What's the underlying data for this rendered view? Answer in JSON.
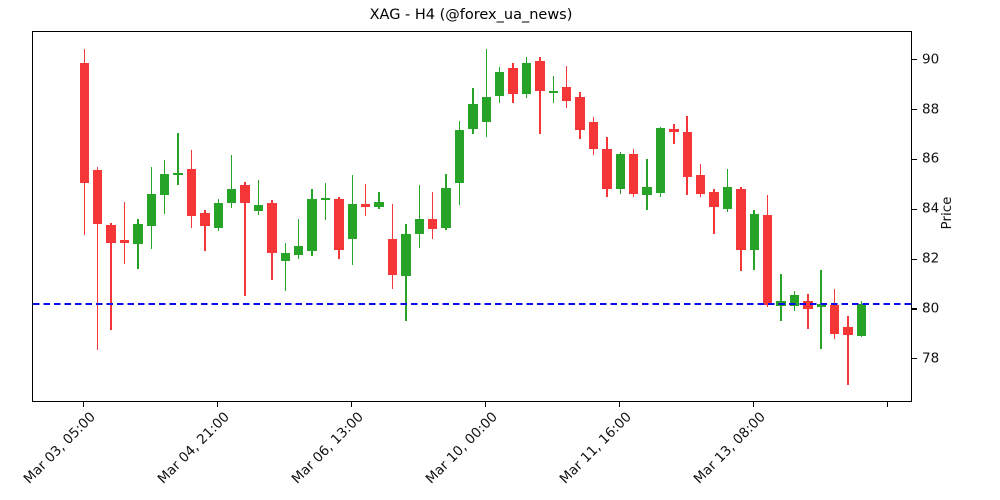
{
  "title": "XAG - H4 (@forex_ua_news)",
  "y_axis": {
    "label": "Price",
    "ticks": [
      78,
      80,
      82,
      84,
      86,
      88,
      90
    ]
  },
  "x_axis": {
    "tick_labels": [
      "Mar 03, 05:00",
      "Mar 04, 21:00",
      "Mar 06, 13:00",
      "Mar 10, 00:00",
      "Mar 11, 16:00",
      "Mar 13, 08:00",
      ""
    ]
  },
  "hline": {
    "value": 80.25,
    "color": "#0b0bee",
    "style": "dashed"
  },
  "chart_data": {
    "type": "candlestick",
    "symbol": "XAG",
    "timeframe": "H4",
    "source": "@forex_ua_news",
    "up_color": "#27a327",
    "down_color": "#f43636",
    "grid": false,
    "legend_position": "none",
    "y_range": [
      76.35,
      91.15
    ],
    "x_range": [
      -3.83,
      61.7
    ],
    "x_tick_indices": [
      0,
      10,
      20,
      30,
      40,
      50,
      60
    ],
    "columns": [
      "open",
      "high",
      "low",
      "close"
    ],
    "candles": [
      [
        89.9,
        90.45,
        83.0,
        85.1
      ],
      [
        85.6,
        85.75,
        78.4,
        83.45
      ],
      [
        83.4,
        83.5,
        79.2,
        82.7
      ],
      [
        82.8,
        84.35,
        81.85,
        82.7
      ],
      [
        82.65,
        83.65,
        81.65,
        83.45
      ],
      [
        83.35,
        85.75,
        82.45,
        84.65
      ],
      [
        84.6,
        86.0,
        83.85,
        85.45
      ],
      [
        85.4,
        87.1,
        85.0,
        85.5
      ],
      [
        85.65,
        86.4,
        83.3,
        83.75
      ],
      [
        83.9,
        84.0,
        82.35,
        83.35
      ],
      [
        83.3,
        84.45,
        83.15,
        84.3
      ],
      [
        84.3,
        86.2,
        84.1,
        84.85
      ],
      [
        85.0,
        85.15,
        80.55,
        84.3
      ],
      [
        83.95,
        85.2,
        83.8,
        84.2
      ],
      [
        84.3,
        84.4,
        81.2,
        82.3
      ],
      [
        81.95,
        82.7,
        80.75,
        82.3
      ],
      [
        82.2,
        83.65,
        82.05,
        82.55
      ],
      [
        82.35,
        84.85,
        82.15,
        84.45
      ],
      [
        84.4,
        85.1,
        83.6,
        84.5
      ],
      [
        84.45,
        84.55,
        82.05,
        82.4
      ],
      [
        82.85,
        85.4,
        81.8,
        84.25
      ],
      [
        84.25,
        85.05,
        83.75,
        84.15
      ],
      [
        84.15,
        84.75,
        84.05,
        84.35
      ],
      [
        82.85,
        84.25,
        80.85,
        81.4
      ],
      [
        81.35,
        83.45,
        79.55,
        83.05
      ],
      [
        83.05,
        85.0,
        82.5,
        83.65
      ],
      [
        83.65,
        84.75,
        82.85,
        83.25
      ],
      [
        83.3,
        85.45,
        83.2,
        84.9
      ],
      [
        85.1,
        87.6,
        84.2,
        87.2
      ],
      [
        87.25,
        88.9,
        87.05,
        88.25
      ],
      [
        87.55,
        90.45,
        86.95,
        88.55
      ],
      [
        88.6,
        89.75,
        88.3,
        89.55
      ],
      [
        89.7,
        89.9,
        88.3,
        88.65
      ],
      [
        88.65,
        90.15,
        88.5,
        89.9
      ],
      [
        90.0,
        90.15,
        87.05,
        88.8
      ],
      [
        88.7,
        89.4,
        88.3,
        88.8
      ],
      [
        88.95,
        89.8,
        88.1,
        88.4
      ],
      [
        88.55,
        88.75,
        86.85,
        87.2
      ],
      [
        87.55,
        87.75,
        86.2,
        86.45
      ],
      [
        86.45,
        86.95,
        84.55,
        84.85
      ],
      [
        84.85,
        86.35,
        84.65,
        86.25
      ],
      [
        86.25,
        86.45,
        84.55,
        84.65
      ],
      [
        84.6,
        86.05,
        84.0,
        84.95
      ],
      [
        84.7,
        87.35,
        84.55,
        87.3
      ],
      [
        87.25,
        87.45,
        86.65,
        87.15
      ],
      [
        87.15,
        87.8,
        84.6,
        85.35
      ],
      [
        85.4,
        85.85,
        84.55,
        84.65
      ],
      [
        84.75,
        84.85,
        83.05,
        84.15
      ],
      [
        84.05,
        85.65,
        83.95,
        84.95
      ],
      [
        84.85,
        84.95,
        81.55,
        82.4
      ],
      [
        82.4,
        84.0,
        81.6,
        83.85
      ],
      [
        83.8,
        84.6,
        80.1,
        80.2
      ],
      [
        80.15,
        81.45,
        79.55,
        80.35
      ],
      [
        80.15,
        80.75,
        79.95,
        80.6
      ],
      [
        80.35,
        80.65,
        79.25,
        80.05
      ],
      [
        80.1,
        81.6,
        78.45,
        80.25
      ],
      [
        80.2,
        80.85,
        78.85,
        79.05
      ],
      [
        79.3,
        79.75,
        77.0,
        79.0
      ],
      [
        78.95,
        80.35,
        78.9,
        80.25
      ]
    ]
  }
}
